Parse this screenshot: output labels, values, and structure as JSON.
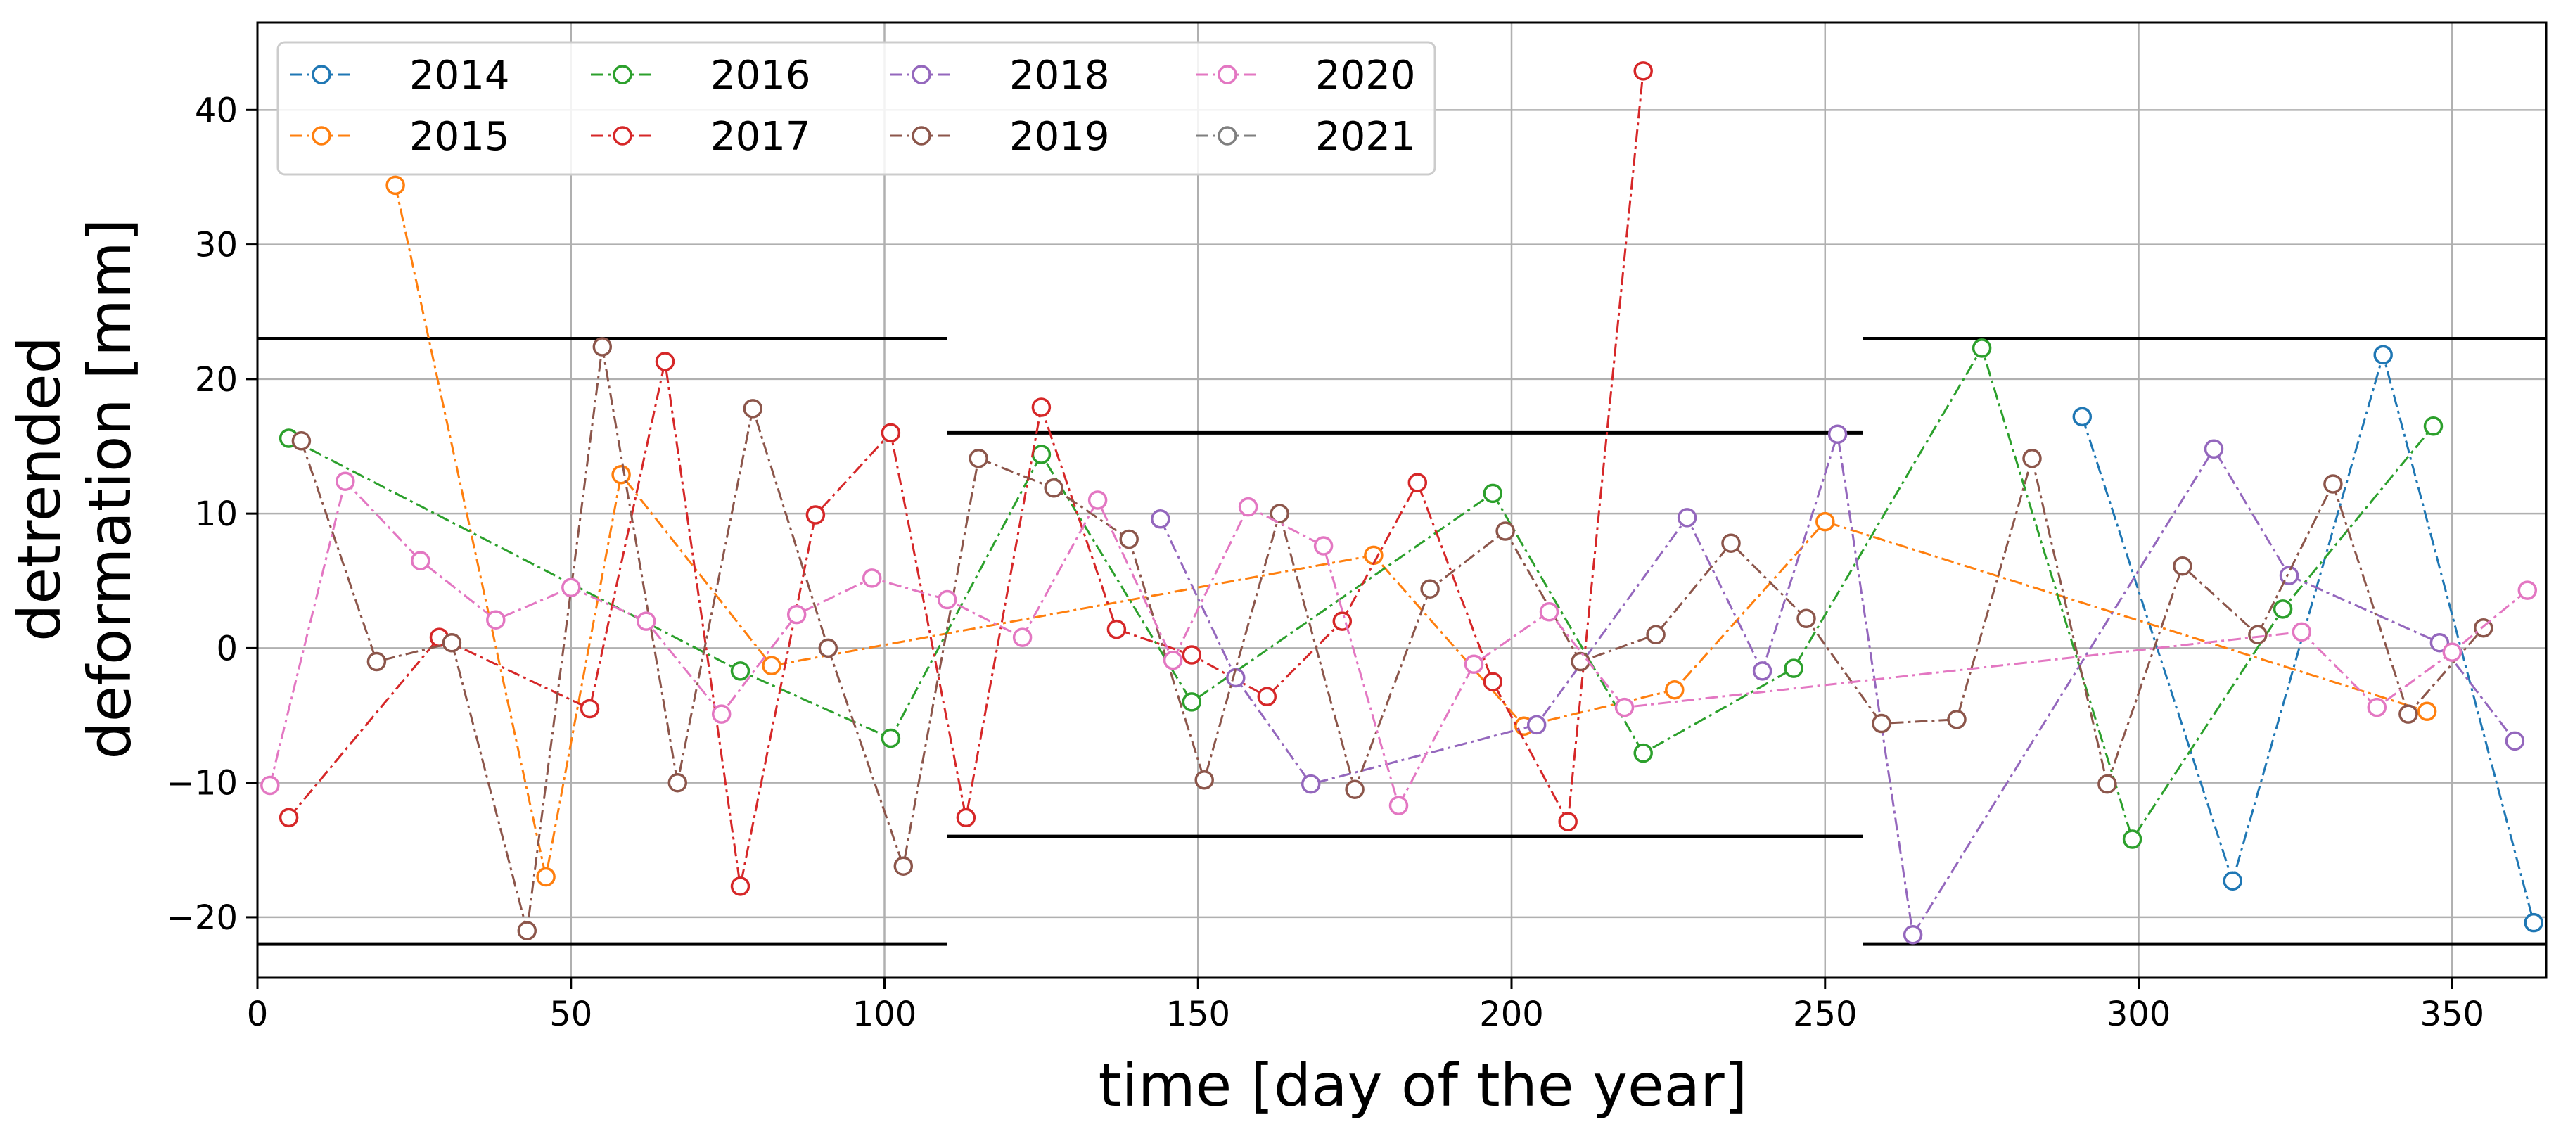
{
  "chart_data": {
    "type": "line",
    "xlabel": "time [day of the year]",
    "ylabel": [
      "detrended",
      "deformation [mm]"
    ],
    "xlim": [
      0,
      365
    ],
    "ylim": [
      -24.5,
      46.5
    ],
    "xticks": [
      0,
      50,
      100,
      150,
      200,
      250,
      300,
      350
    ],
    "yticks": [
      -20,
      -10,
      0,
      10,
      20,
      30,
      40
    ],
    "x_tick_labels": [
      "0",
      "50",
      "100",
      "150",
      "200",
      "250",
      "300",
      "350"
    ],
    "y_tick_labels": [
      "−20",
      "−10",
      "0",
      "10",
      "20",
      "30",
      "40"
    ],
    "grid": true,
    "legend": {
      "placement": "top-left",
      "columns": 4
    },
    "threshold_lines": [
      {
        "x": [
          0,
          110
        ],
        "y": 23
      },
      {
        "x": [
          0,
          110
        ],
        "y": -22
      },
      {
        "x": [
          110,
          256
        ],
        "y": 16
      },
      {
        "x": [
          110,
          256
        ],
        "y": -14
      },
      {
        "x": [
          256,
          365
        ],
        "y": 23
      },
      {
        "x": [
          256,
          365
        ],
        "y": -22
      }
    ],
    "series": [
      {
        "name": "2014",
        "color": "#1f77b4",
        "points": [
          [
            291,
            17.2
          ],
          [
            315,
            -17.3
          ],
          [
            339,
            21.8
          ],
          [
            363,
            -20.4
          ]
        ]
      },
      {
        "name": "2015",
        "color": "#ff7f0e",
        "points": [
          [
            22,
            34.4
          ],
          [
            46,
            -17.0
          ],
          [
            58,
            12.9
          ],
          [
            82,
            -1.3
          ],
          [
            178,
            6.9
          ],
          [
            202,
            -5.8
          ],
          [
            226,
            -3.1
          ],
          [
            250,
            9.4
          ],
          [
            346,
            -4.7
          ]
        ]
      },
      {
        "name": "2016",
        "color": "#2ca02c",
        "points": [
          [
            5,
            15.6
          ],
          [
            77,
            -1.7
          ],
          [
            101,
            -6.7
          ],
          [
            125,
            14.4
          ],
          [
            149,
            -4.0
          ],
          [
            197,
            11.5
          ],
          [
            221,
            -7.8
          ],
          [
            245,
            -1.5
          ],
          [
            275,
            22.3
          ],
          [
            299,
            -14.2
          ],
          [
            323,
            2.9
          ],
          [
            347,
            16.5
          ]
        ]
      },
      {
        "name": "2017",
        "color": "#d62728",
        "points": [
          [
            5,
            -12.6
          ],
          [
            29,
            0.8
          ],
          [
            53,
            -4.5
          ],
          [
            65,
            21.3
          ],
          [
            77,
            -17.7
          ],
          [
            89,
            9.9
          ],
          [
            101,
            16.0
          ],
          [
            113,
            -12.6
          ],
          [
            125,
            17.9
          ],
          [
            137,
            1.4
          ],
          [
            149,
            -0.5
          ],
          [
            161,
            -3.6
          ],
          [
            173,
            2.0
          ],
          [
            185,
            12.3
          ],
          [
            197,
            -2.5
          ],
          [
            209,
            -12.9
          ],
          [
            221,
            42.9
          ]
        ]
      },
      {
        "name": "2018",
        "color": "#9467bd",
        "points": [
          [
            144,
            9.6
          ],
          [
            156,
            -2.2
          ],
          [
            168,
            -10.1
          ],
          [
            204,
            -5.7
          ],
          [
            228,
            9.7
          ],
          [
            240,
            -1.7
          ],
          [
            252,
            15.9
          ],
          [
            264,
            -21.3
          ],
          [
            312,
            14.8
          ],
          [
            324,
            5.4
          ],
          [
            348,
            0.4
          ],
          [
            360,
            -6.9
          ]
        ]
      },
      {
        "name": "2019",
        "color": "#8c564b",
        "points": [
          [
            7,
            15.4
          ],
          [
            19,
            -1.0
          ],
          [
            31,
            0.4
          ],
          [
            43,
            -21.0
          ],
          [
            55,
            22.4
          ],
          [
            67,
            -10.0
          ],
          [
            79,
            17.8
          ],
          [
            91,
            0.0
          ],
          [
            103,
            -16.2
          ],
          [
            115,
            14.1
          ],
          [
            127,
            11.9
          ],
          [
            139,
            8.1
          ],
          [
            151,
            -9.8
          ],
          [
            163,
            10.0
          ],
          [
            175,
            -10.5
          ],
          [
            187,
            4.4
          ],
          [
            199,
            8.7
          ],
          [
            211,
            -1.0
          ],
          [
            223,
            1.0
          ],
          [
            235,
            7.8
          ],
          [
            247,
            2.2
          ],
          [
            259,
            -5.6
          ],
          [
            271,
            -5.3
          ],
          [
            283,
            14.1
          ],
          [
            295,
            -10.1
          ],
          [
            307,
            6.1
          ],
          [
            319,
            1.0
          ],
          [
            331,
            12.2
          ],
          [
            343,
            -4.9
          ],
          [
            355,
            1.5
          ]
        ]
      },
      {
        "name": "2020",
        "color": "#e377c2",
        "points": [
          [
            2,
            -10.2
          ],
          [
            14,
            12.4
          ],
          [
            26,
            6.5
          ],
          [
            38,
            2.1
          ],
          [
            50,
            4.5
          ],
          [
            62,
            2.0
          ],
          [
            74,
            -4.9
          ],
          [
            86,
            2.5
          ],
          [
            98,
            5.2
          ],
          [
            110,
            3.6
          ],
          [
            122,
            0.8
          ],
          [
            134,
            11.0
          ],
          [
            146,
            -0.9
          ],
          [
            158,
            10.5
          ],
          [
            170,
            7.6
          ],
          [
            182,
            -11.7
          ],
          [
            194,
            -1.2
          ],
          [
            206,
            2.7
          ],
          [
            218,
            -4.4
          ],
          [
            326,
            1.2
          ],
          [
            338,
            -4.4
          ],
          [
            350,
            -0.3
          ],
          [
            362,
            4.3
          ]
        ]
      },
      {
        "name": "2021",
        "color": "#7f7f7f",
        "points": []
      }
    ]
  }
}
